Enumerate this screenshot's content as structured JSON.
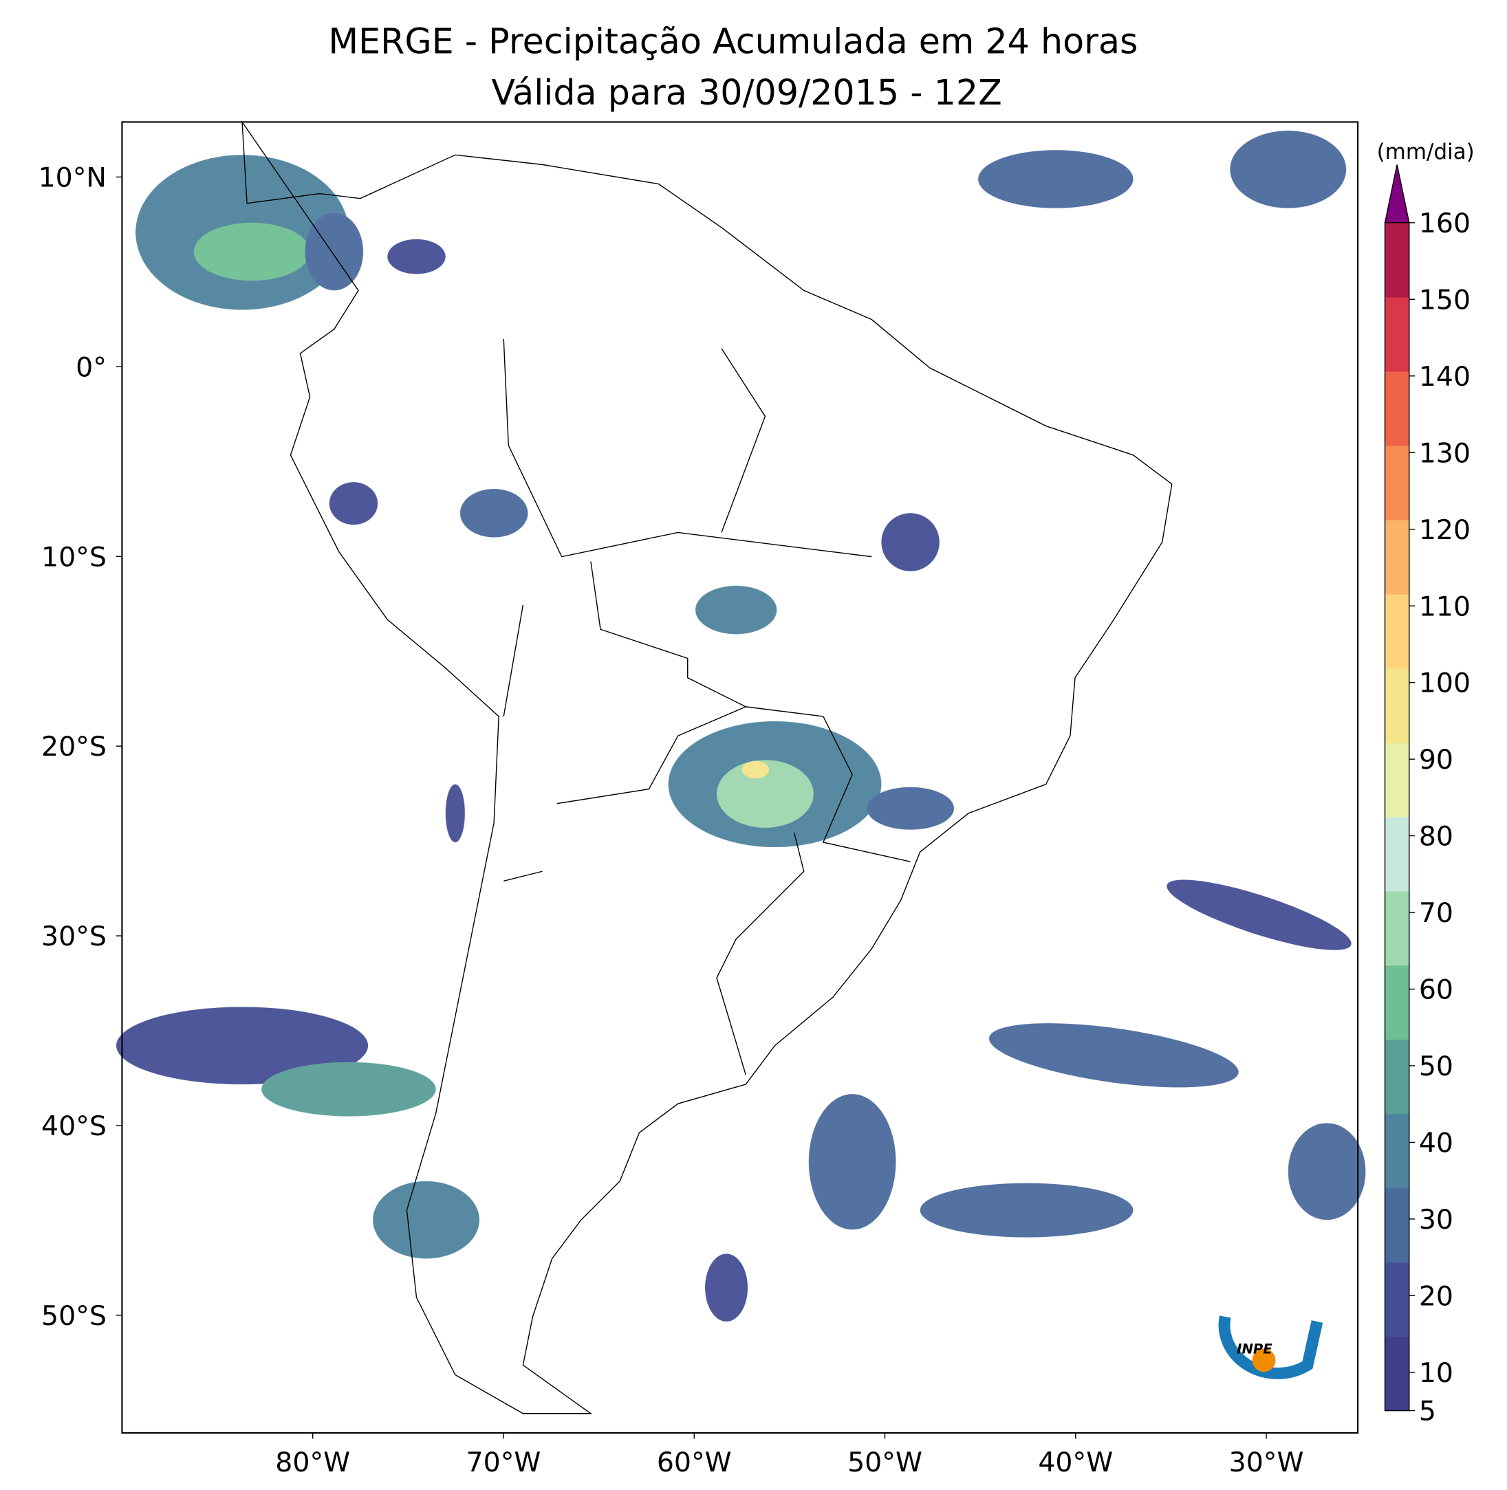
{
  "map": {
    "title": "MERGE - Precipitação Acumulada em 24 horas",
    "subtitle": "Válida para 30/09/2015 - 12Z",
    "xlim": [
      -90,
      -25.2
    ],
    "ylim": [
      -56.2,
      12.9
    ],
    "xticks": [
      {
        "value": -80,
        "label": "80°W"
      },
      {
        "value": -70,
        "label": "70°W"
      },
      {
        "value": -60,
        "label": "60°W"
      },
      {
        "value": -50,
        "label": "50°W"
      },
      {
        "value": -40,
        "label": "40°W"
      },
      {
        "value": -30,
        "label": "30°W"
      }
    ],
    "yticks": [
      {
        "value": 10,
        "label": "10°N"
      },
      {
        "value": 0,
        "label": "0°"
      },
      {
        "value": -10,
        "label": "10°S"
      },
      {
        "value": -20,
        "label": "20°S"
      },
      {
        "value": -30,
        "label": "30°S"
      },
      {
        "value": -40,
        "label": "40°S"
      },
      {
        "value": -50,
        "label": "50°S"
      }
    ],
    "colorbar": {
      "label": "(mm/dia)",
      "lim": [
        5,
        160
      ],
      "ticks": [
        5,
        10,
        20,
        30,
        40,
        50,
        60,
        70,
        80,
        90,
        100,
        110,
        120,
        130,
        140,
        150,
        160
      ],
      "colors": [
        "#3f3f8c",
        "#454f94",
        "#4a6a9c",
        "#4f849e",
        "#5a9e98",
        "#6fbf94",
        "#9fd7ae",
        "#c9e8dc",
        "#e9f0a8",
        "#f6e48a",
        "#fdd47c",
        "#fcb46a",
        "#f88c52",
        "#ef6446",
        "#d8384a",
        "#b01c48"
      ],
      "extend_color": "#800080"
    },
    "logo": "INPE"
  }
}
